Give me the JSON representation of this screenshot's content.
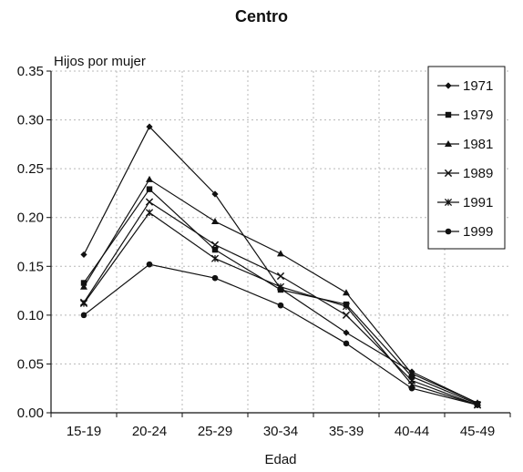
{
  "chart_data": {
    "type": "line",
    "title": "Centro",
    "xlabel": "Edad",
    "ylabel": "Hijos por mujer",
    "categories": [
      "15-19",
      "20-24",
      "25-29",
      "30-34",
      "35-39",
      "40-44",
      "45-49"
    ],
    "ylim": [
      0,
      0.35
    ],
    "yticks": [
      0.0,
      0.05,
      0.1,
      0.15,
      0.2,
      0.25,
      0.3,
      0.35
    ],
    "grid": true,
    "legend_position": "top-right",
    "series": [
      {
        "name": "1971",
        "marker": "diamond",
        "values": [
          0.162,
          0.293,
          0.224,
          0.127,
          0.082,
          0.042,
          0.01
        ]
      },
      {
        "name": "1979",
        "marker": "square",
        "values": [
          0.133,
          0.229,
          0.167,
          0.126,
          0.111,
          0.037,
          0.009
        ]
      },
      {
        "name": "1981",
        "marker": "triangle",
        "values": [
          0.129,
          0.239,
          0.196,
          0.163,
          0.123,
          0.04,
          0.01
        ]
      },
      {
        "name": "1989",
        "marker": "x",
        "values": [
          0.113,
          0.216,
          0.172,
          0.14,
          0.1,
          0.033,
          0.008
        ]
      },
      {
        "name": "1991",
        "marker": "star",
        "values": [
          0.112,
          0.205,
          0.158,
          0.129,
          0.109,
          0.029,
          0.008
        ]
      },
      {
        "name": "1999",
        "marker": "circle",
        "values": [
          0.1,
          0.152,
          0.138,
          0.11,
          0.071,
          0.025,
          0.008
        ]
      }
    ],
    "colors": {
      "line": "#111111",
      "grid": "#b8b8b8",
      "axis": "#111111"
    }
  }
}
